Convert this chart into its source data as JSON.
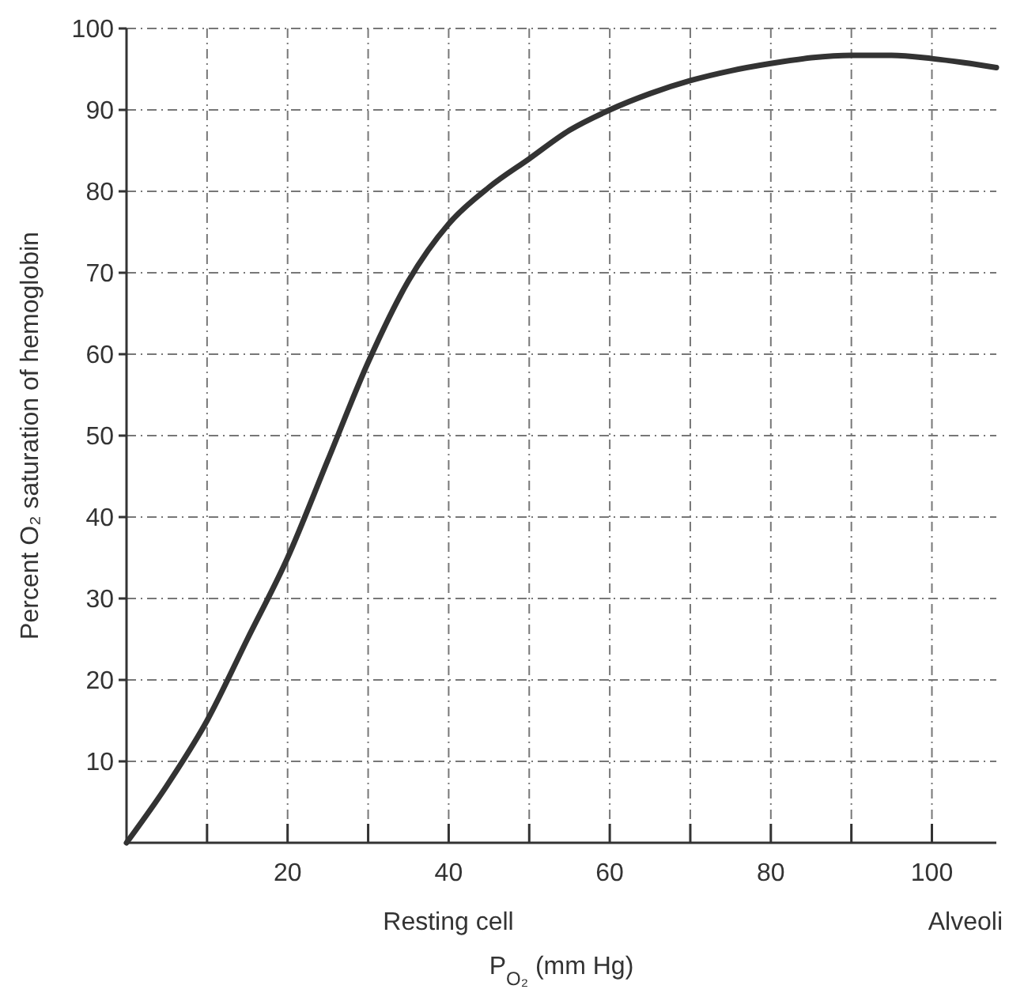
{
  "chart_data": {
    "type": "line",
    "xlabel": "P$_{O₂}$ (mm Hg)",
    "ylabel": "Percent O₂ saturation of hemoglobin",
    "x": [
      0,
      5,
      10,
      15,
      20,
      25,
      30,
      35,
      40,
      45,
      50,
      55,
      60,
      65,
      70,
      75,
      80,
      85,
      90,
      95,
      100,
      104,
      108
    ],
    "series": [
      {
        "color": "#333333",
        "values": [
          0,
          7,
          15,
          25,
          35,
          47,
          59,
          69,
          76,
          80.5,
          84,
          87.5,
          90,
          92,
          93.6,
          94.8,
          95.7,
          96.4,
          96.7,
          96.7,
          96.3,
          95.8,
          95.2
        ]
      }
    ],
    "xlim": [
      0,
      108
    ],
    "ylim": [
      0,
      100
    ],
    "xticks": [
      {
        "value": 10,
        "label": null
      },
      20,
      {
        "value": 30,
        "label": null
      },
      40,
      {
        "value": 50,
        "label": null
      },
      60,
      {
        "value": 70,
        "label": null
      },
      80,
      {
        "value": 90,
        "label": null
      },
      100
    ],
    "yticks": [
      10,
      20,
      30,
      40,
      50,
      60,
      70,
      80,
      90,
      100
    ],
    "grid": true,
    "line_style": "solid",
    "marker": "none",
    "annotations": [
      "Resting cell",
      "Alveoli"
    ]
  }
}
